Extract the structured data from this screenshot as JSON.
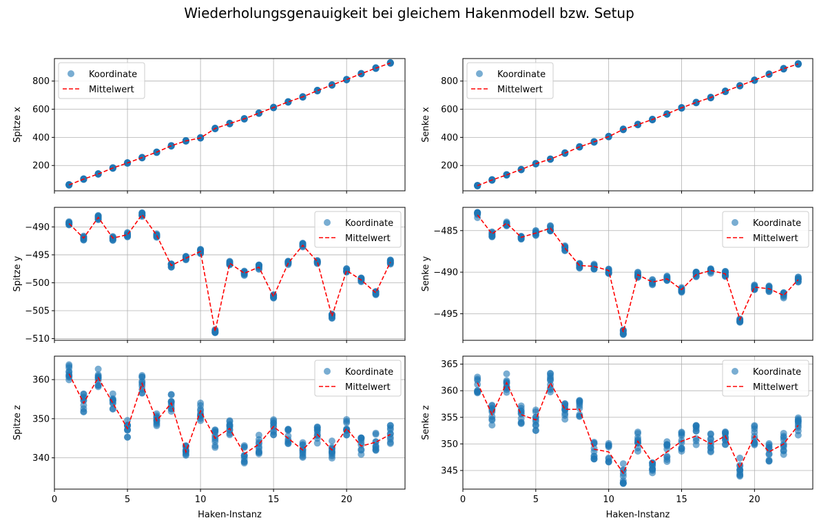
{
  "figure": {
    "title": "Wiederholungsgenauigkeit bei gleichem Hakenmodell bzw. Setup",
    "xlabel": "Haken-Instanz"
  },
  "colors": {
    "points": "#1f77b4",
    "mean_line": "#ff0000",
    "grid": "#b0b0b0"
  },
  "chart_data": [
    {
      "type": "scatter",
      "ylabel": "Spitze x",
      "xlim": [
        0,
        24
      ],
      "ylim": [
        20,
        960
      ],
      "yticks": [
        200,
        400,
        600,
        800
      ],
      "xticks": [
        0,
        5,
        10,
        15,
        20
      ],
      "show_xticklabels": false,
      "grid": true,
      "legend": "top-left",
      "series": [
        {
          "name": "Koordinate",
          "kind": "scatter",
          "spread": 3
        },
        {
          "name": "Mittelwert",
          "kind": "line-dashed",
          "x": [
            1,
            2,
            3,
            4,
            5,
            6,
            7,
            8,
            9,
            10,
            11,
            12,
            13,
            14,
            15,
            16,
            17,
            18,
            19,
            20,
            21,
            22,
            23
          ],
          "y": [
            62,
            103,
            140,
            182,
            218,
            256,
            295,
            340,
            375,
            396,
            463,
            498,
            532,
            572,
            612,
            652,
            688,
            732,
            772,
            811,
            852,
            892,
            928
          ]
        }
      ]
    },
    {
      "type": "scatter",
      "ylabel": "Senke x",
      "xlim": [
        0,
        24
      ],
      "ylim": [
        20,
        960
      ],
      "yticks": [
        200,
        400,
        600,
        800
      ],
      "xticks": [
        0,
        5,
        10,
        15,
        20
      ],
      "show_xticklabels": false,
      "grid": true,
      "legend": "top-left",
      "series": [
        {
          "name": "Koordinate",
          "kind": "scatter",
          "spread": 3
        },
        {
          "name": "Mittelwert",
          "kind": "line-dashed",
          "x": [
            1,
            2,
            3,
            4,
            5,
            6,
            7,
            8,
            9,
            10,
            11,
            12,
            13,
            14,
            15,
            16,
            17,
            18,
            19,
            20,
            21,
            22,
            23
          ],
          "y": [
            57,
            97,
            133,
            172,
            213,
            245,
            288,
            332,
            368,
            405,
            457,
            491,
            527,
            567,
            610,
            648,
            683,
            727,
            767,
            806,
            848,
            888,
            922
          ]
        }
      ]
    },
    {
      "type": "scatter",
      "ylabel": "Spitze y",
      "xlim": [
        0,
        24
      ],
      "ylim": [
        -510.3,
        -486.5
      ],
      "yticks": [
        -510,
        -505,
        -500,
        -495,
        -490
      ],
      "xticks": [
        0,
        5,
        10,
        15,
        20
      ],
      "show_xticklabels": false,
      "grid": true,
      "legend": "top-right",
      "series": [
        {
          "name": "Koordinate",
          "kind": "scatter",
          "spread": 0.4
        },
        {
          "name": "Mittelwert",
          "kind": "line-dashed",
          "x": [
            1,
            2,
            3,
            4,
            5,
            6,
            7,
            8,
            9,
            10,
            11,
            12,
            13,
            14,
            15,
            16,
            17,
            18,
            19,
            20,
            21,
            22,
            23
          ],
          "y": [
            -489.4,
            -492.0,
            -488.3,
            -492.0,
            -491.4,
            -487.8,
            -491.5,
            -496.9,
            -495.6,
            -494.4,
            -508.7,
            -496.5,
            -498.3,
            -497.2,
            -502.5,
            -496.5,
            -493.3,
            -496.2,
            -506.0,
            -497.8,
            -499.5,
            -501.8,
            -496.3
          ]
        }
      ]
    },
    {
      "type": "scatter",
      "ylabel": "Senke y",
      "xlim": [
        0,
        24
      ],
      "ylim": [
        -498.2,
        -482.2
      ],
      "yticks": [
        -495,
        -490,
        -485
      ],
      "xticks": [
        0,
        5,
        10,
        15,
        20
      ],
      "show_xticklabels": false,
      "grid": true,
      "legend": "top-right",
      "series": [
        {
          "name": "Koordinate",
          "kind": "scatter",
          "spread": 0.35
        },
        {
          "name": "Mittelwert",
          "kind": "line-dashed",
          "x": [
            1,
            2,
            3,
            4,
            5,
            6,
            7,
            8,
            9,
            10,
            11,
            12,
            13,
            14,
            15,
            16,
            17,
            18,
            19,
            20,
            21,
            22,
            23
          ],
          "y": [
            -483.1,
            -485.4,
            -484.1,
            -485.8,
            -485.3,
            -484.7,
            -487.1,
            -489.2,
            -489.3,
            -489.8,
            -497.2,
            -490.3,
            -491.2,
            -490.8,
            -492.1,
            -490.3,
            -489.8,
            -490.2,
            -495.7,
            -491.8,
            -492.0,
            -492.8,
            -490.9
          ]
        }
      ]
    },
    {
      "type": "scatter",
      "ylabel": "Spitze z",
      "xlim": [
        0,
        24
      ],
      "ylim": [
        332,
        366
      ],
      "yticks": [
        340,
        350,
        360
      ],
      "xticks": [
        0,
        5,
        10,
        15,
        20
      ],
      "show_xticklabels": true,
      "xlabel": "Haken-Instanz",
      "grid": true,
      "legend": "top-right",
      "series": [
        {
          "name": "Koordinate",
          "kind": "scatter",
          "spread": 2.5
        },
        {
          "name": "Mittelwert",
          "kind": "line-dashed",
          "x": [
            1,
            2,
            3,
            4,
            5,
            6,
            7,
            8,
            9,
            10,
            11,
            12,
            13,
            14,
            15,
            16,
            17,
            18,
            19,
            20,
            21,
            22,
            23
          ],
          "y": [
            361.5,
            354.0,
            360.5,
            354.0,
            347.5,
            359.0,
            349.5,
            354.0,
            341.5,
            352.0,
            345.0,
            347.5,
            341.0,
            343.5,
            348.0,
            345.0,
            342.0,
            346.0,
            342.0,
            347.5,
            343.0,
            344.0,
            346.0
          ]
        }
      ]
    },
    {
      "type": "scatter",
      "ylabel": "Senke z",
      "xlim": [
        0,
        24
      ],
      "ylim": [
        341.5,
        366.5
      ],
      "yticks": [
        345,
        350,
        355,
        360,
        365
      ],
      "xticks": [
        0,
        5,
        10,
        15,
        20
      ],
      "show_xticklabels": true,
      "xlabel": "Haken-Instanz",
      "grid": true,
      "legend": "top-right",
      "series": [
        {
          "name": "Koordinate",
          "kind": "scatter",
          "spread": 2.0
        },
        {
          "name": "Mittelwert",
          "kind": "line-dashed",
          "x": [
            1,
            2,
            3,
            4,
            5,
            6,
            7,
            8,
            9,
            10,
            11,
            12,
            13,
            14,
            15,
            16,
            17,
            18,
            19,
            20,
            21,
            22,
            23
          ],
          "y": [
            361.5,
            355.5,
            361.5,
            355.5,
            354.5,
            361.5,
            356.5,
            356.5,
            349.0,
            348.5,
            344.5,
            350.5,
            346.5,
            348.5,
            350.5,
            351.5,
            350.0,
            351.5,
            345.5,
            351.5,
            348.5,
            350.0,
            353.5
          ]
        }
      ]
    }
  ]
}
